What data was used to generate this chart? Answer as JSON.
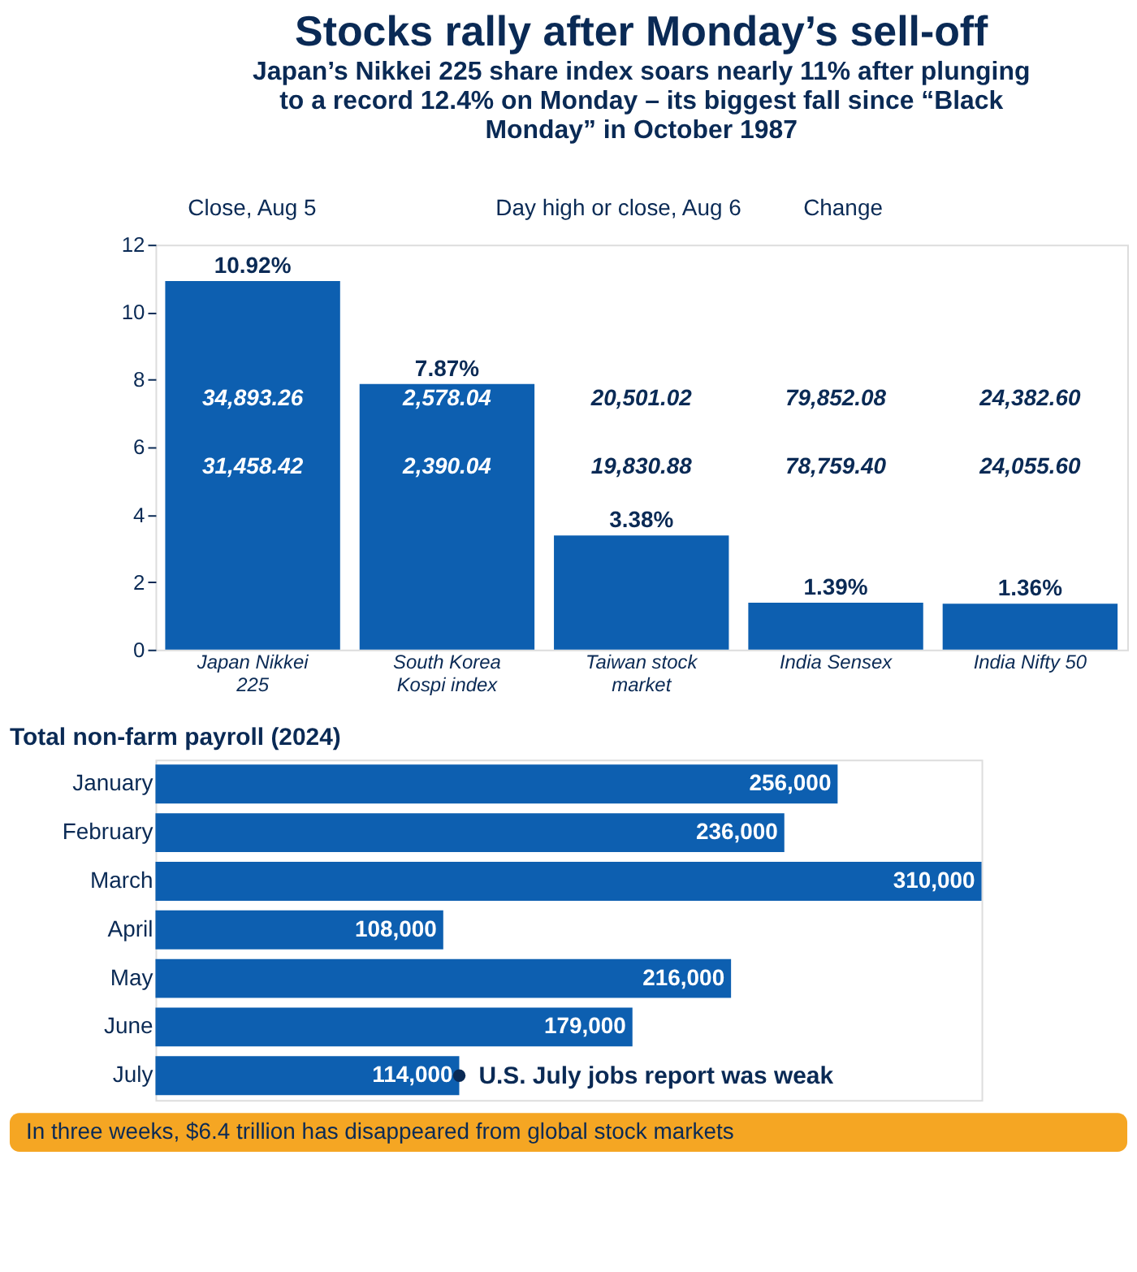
{
  "chart_data": [
    {
      "type": "bar",
      "title": "Stocks rally after Monday’s sell-off",
      "subtitle": "Japan’s Nikkei 225 share index soars nearly 11% after plunging to a record 12.4% on Monday – its biggest fall since “Black Monday” in October 1987",
      "categories": [
        "Japan Nikkei 225",
        "South Korea Kospi index",
        "Taiwan stock market",
        "India Sensex",
        "India Nifty 50"
      ],
      "values": [
        10.92,
        7.87,
        3.38,
        1.39,
        1.36
      ],
      "value_labels": [
        "10.92%",
        "7.87%",
        "3.38%",
        "1.39%",
        "1.36%"
      ],
      "color": "#0d5fb0",
      "ylim": [
        0,
        12
      ],
      "yticks": [
        0,
        2,
        4,
        6,
        8,
        10,
        12
      ],
      "grid": false,
      "annotations": [
        "Close, Aug 5",
        "Day high or close, Aug 6",
        "Change",
        "34,893.26",
        "31,458.42",
        "2,578.04",
        "2,390.04",
        "20,501.02",
        "19,830.88",
        "79,852.08",
        "78,759.40",
        "24,382.60",
        "24,055.60"
      ]
    },
    {
      "type": "bar",
      "orientation": "horizontal",
      "title": "Total non-farm payroll (2024)",
      "categories": [
        "January",
        "February",
        "March",
        "April",
        "May",
        "June",
        "July"
      ],
      "values": [
        256000,
        236000,
        310000,
        108000,
        216000,
        179000,
        114000
      ],
      "color": "#0d5fb0",
      "value_labels": [
        "256,000",
        "236,000",
        "310,000",
        "108,000",
        "216,000",
        "179,000",
        "114,000"
      ],
      "annotations": [
        {
          "text": "U.S. July jobs report was weak",
          "x": 114000,
          "y": "July"
        },
        "In three weeks, $6.4 trillion has disappeared from global stock markets"
      ]
    }
  ]
}
